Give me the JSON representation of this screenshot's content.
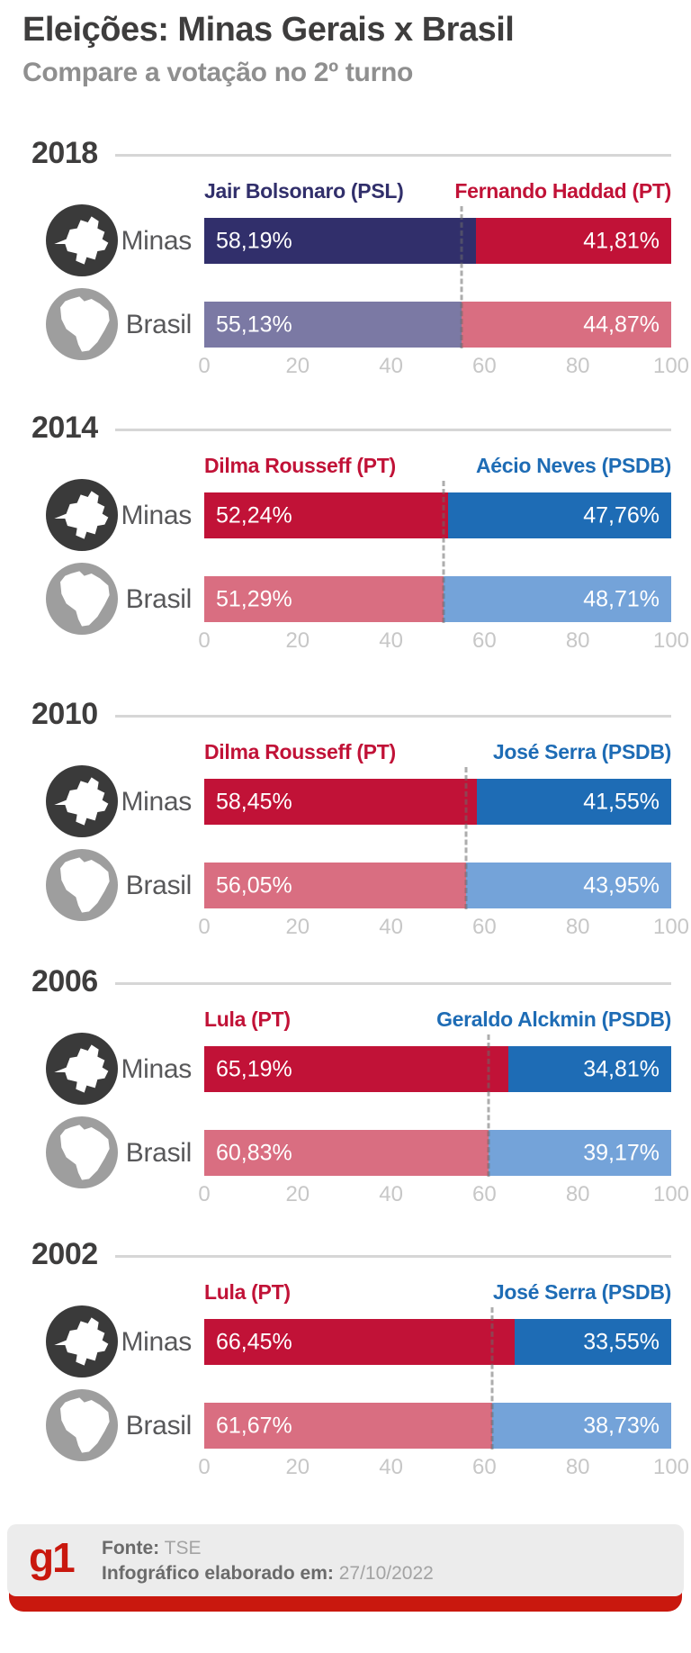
{
  "header": {
    "title": "Eleições: Minas Gerais x Brasil",
    "subtitle": "Compare a votação no 2º turno"
  },
  "icons": {
    "minas_circle_color": "#3a3a3a",
    "brasil_circle_color": "#9e9e9e",
    "map_fill": "#ffffff"
  },
  "row_names": {
    "minas": "Minas",
    "brasil": "Brasil"
  },
  "chart_data": [
    {
      "type": "bar",
      "year": "2018",
      "xlim": [
        0,
        100
      ],
      "x_ticks": [
        "0",
        "20",
        "40",
        "60",
        "80",
        "100"
      ],
      "legend_position": "above-bar",
      "candidates": [
        {
          "name": "Jair Bolsonaro (PSL)",
          "color": "#312f6b"
        },
        {
          "name": "Fernando Haddad (PT)",
          "color": "#c11237"
        }
      ],
      "rows": [
        {
          "region": "Minas",
          "values": [
            58.19,
            41.81
          ],
          "labels": [
            "58,19%",
            "41,81%"
          ],
          "colors": [
            "#312f6b",
            "#c11237"
          ]
        },
        {
          "region": "Brasil",
          "values": [
            55.13,
            44.87
          ],
          "labels": [
            "55,13%",
            "44,87%"
          ],
          "colors": [
            "#7b79a4",
            "#d96e81"
          ]
        }
      ],
      "dashed_line_at": 55.13
    },
    {
      "type": "bar",
      "year": "2014",
      "xlim": [
        0,
        100
      ],
      "x_ticks": [
        "0",
        "20",
        "40",
        "60",
        "80",
        "100"
      ],
      "legend_position": "above-bar",
      "candidates": [
        {
          "name": "Dilma Rousseff (PT)",
          "color": "#c11237"
        },
        {
          "name": "Aécio Neves (PSDB)",
          "color": "#1e6cb5"
        }
      ],
      "rows": [
        {
          "region": "Minas",
          "values": [
            52.24,
            47.76
          ],
          "labels": [
            "52,24%",
            "47,76%"
          ],
          "colors": [
            "#c11237",
            "#1e6cb5"
          ]
        },
        {
          "region": "Brasil",
          "values": [
            51.29,
            48.71
          ],
          "labels": [
            "51,29%",
            "48,71%"
          ],
          "colors": [
            "#d96e81",
            "#74a3d9"
          ]
        }
      ],
      "dashed_line_at": 51.29
    },
    {
      "type": "bar",
      "year": "2010",
      "xlim": [
        0,
        100
      ],
      "x_ticks": [
        "0",
        "20",
        "40",
        "60",
        "80",
        "100"
      ],
      "legend_position": "above-bar",
      "candidates": [
        {
          "name": "Dilma Rousseff (PT)",
          "color": "#c11237"
        },
        {
          "name": "José Serra (PSDB)",
          "color": "#1e6cb5"
        }
      ],
      "rows": [
        {
          "region": "Minas",
          "values": [
            58.45,
            41.55
          ],
          "labels": [
            "58,45%",
            "41,55%"
          ],
          "colors": [
            "#c11237",
            "#1e6cb5"
          ]
        },
        {
          "region": "Brasil",
          "values": [
            56.05,
            43.95
          ],
          "labels": [
            "56,05%",
            "43,95%"
          ],
          "colors": [
            "#d96e81",
            "#74a3d9"
          ]
        }
      ],
      "dashed_line_at": 56.05
    },
    {
      "type": "bar",
      "year": "2006",
      "xlim": [
        0,
        100
      ],
      "x_ticks": [
        "0",
        "20",
        "40",
        "60",
        "80",
        "100"
      ],
      "legend_position": "above-bar",
      "candidates": [
        {
          "name": "Lula (PT)",
          "color": "#c11237"
        },
        {
          "name": "Geraldo Alckmin (PSDB)",
          "color": "#1e6cb5"
        }
      ],
      "rows": [
        {
          "region": "Minas",
          "values": [
            65.19,
            34.81
          ],
          "labels": [
            "65,19%",
            "34,81%"
          ],
          "colors": [
            "#c11237",
            "#1e6cb5"
          ]
        },
        {
          "region": "Brasil",
          "values": [
            60.83,
            39.17
          ],
          "labels": [
            "60,83%",
            "39,17%"
          ],
          "colors": [
            "#d96e81",
            "#74a3d9"
          ]
        }
      ],
      "dashed_line_at": 60.83
    },
    {
      "type": "bar",
      "year": "2002",
      "xlim": [
        0,
        100
      ],
      "x_ticks": [
        "0",
        "20",
        "40",
        "60",
        "80",
        "100"
      ],
      "legend_position": "above-bar",
      "candidates": [
        {
          "name": "Lula (PT)",
          "color": "#c11237"
        },
        {
          "name": "José Serra (PSDB)",
          "color": "#1e6cb5"
        }
      ],
      "rows": [
        {
          "region": "Minas",
          "values": [
            66.45,
            33.55
          ],
          "labels": [
            "66,45%",
            "33,55%"
          ],
          "colors": [
            "#c11237",
            "#1e6cb5"
          ]
        },
        {
          "region": "Brasil",
          "values": [
            61.67,
            38.73
          ],
          "labels": [
            "61,67%",
            "38,73%"
          ],
          "colors": [
            "#d96e81",
            "#74a3d9"
          ]
        }
      ],
      "dashed_line_at": 61.67
    }
  ],
  "footer": {
    "logo_text": "g1",
    "logo_color": "#c9180e",
    "bar_color": "#c9180e",
    "source_label": "Fonte:",
    "source_value": "TSE",
    "made_label": "Infográfico elaborado em:",
    "made_value": "27/10/2022"
  }
}
